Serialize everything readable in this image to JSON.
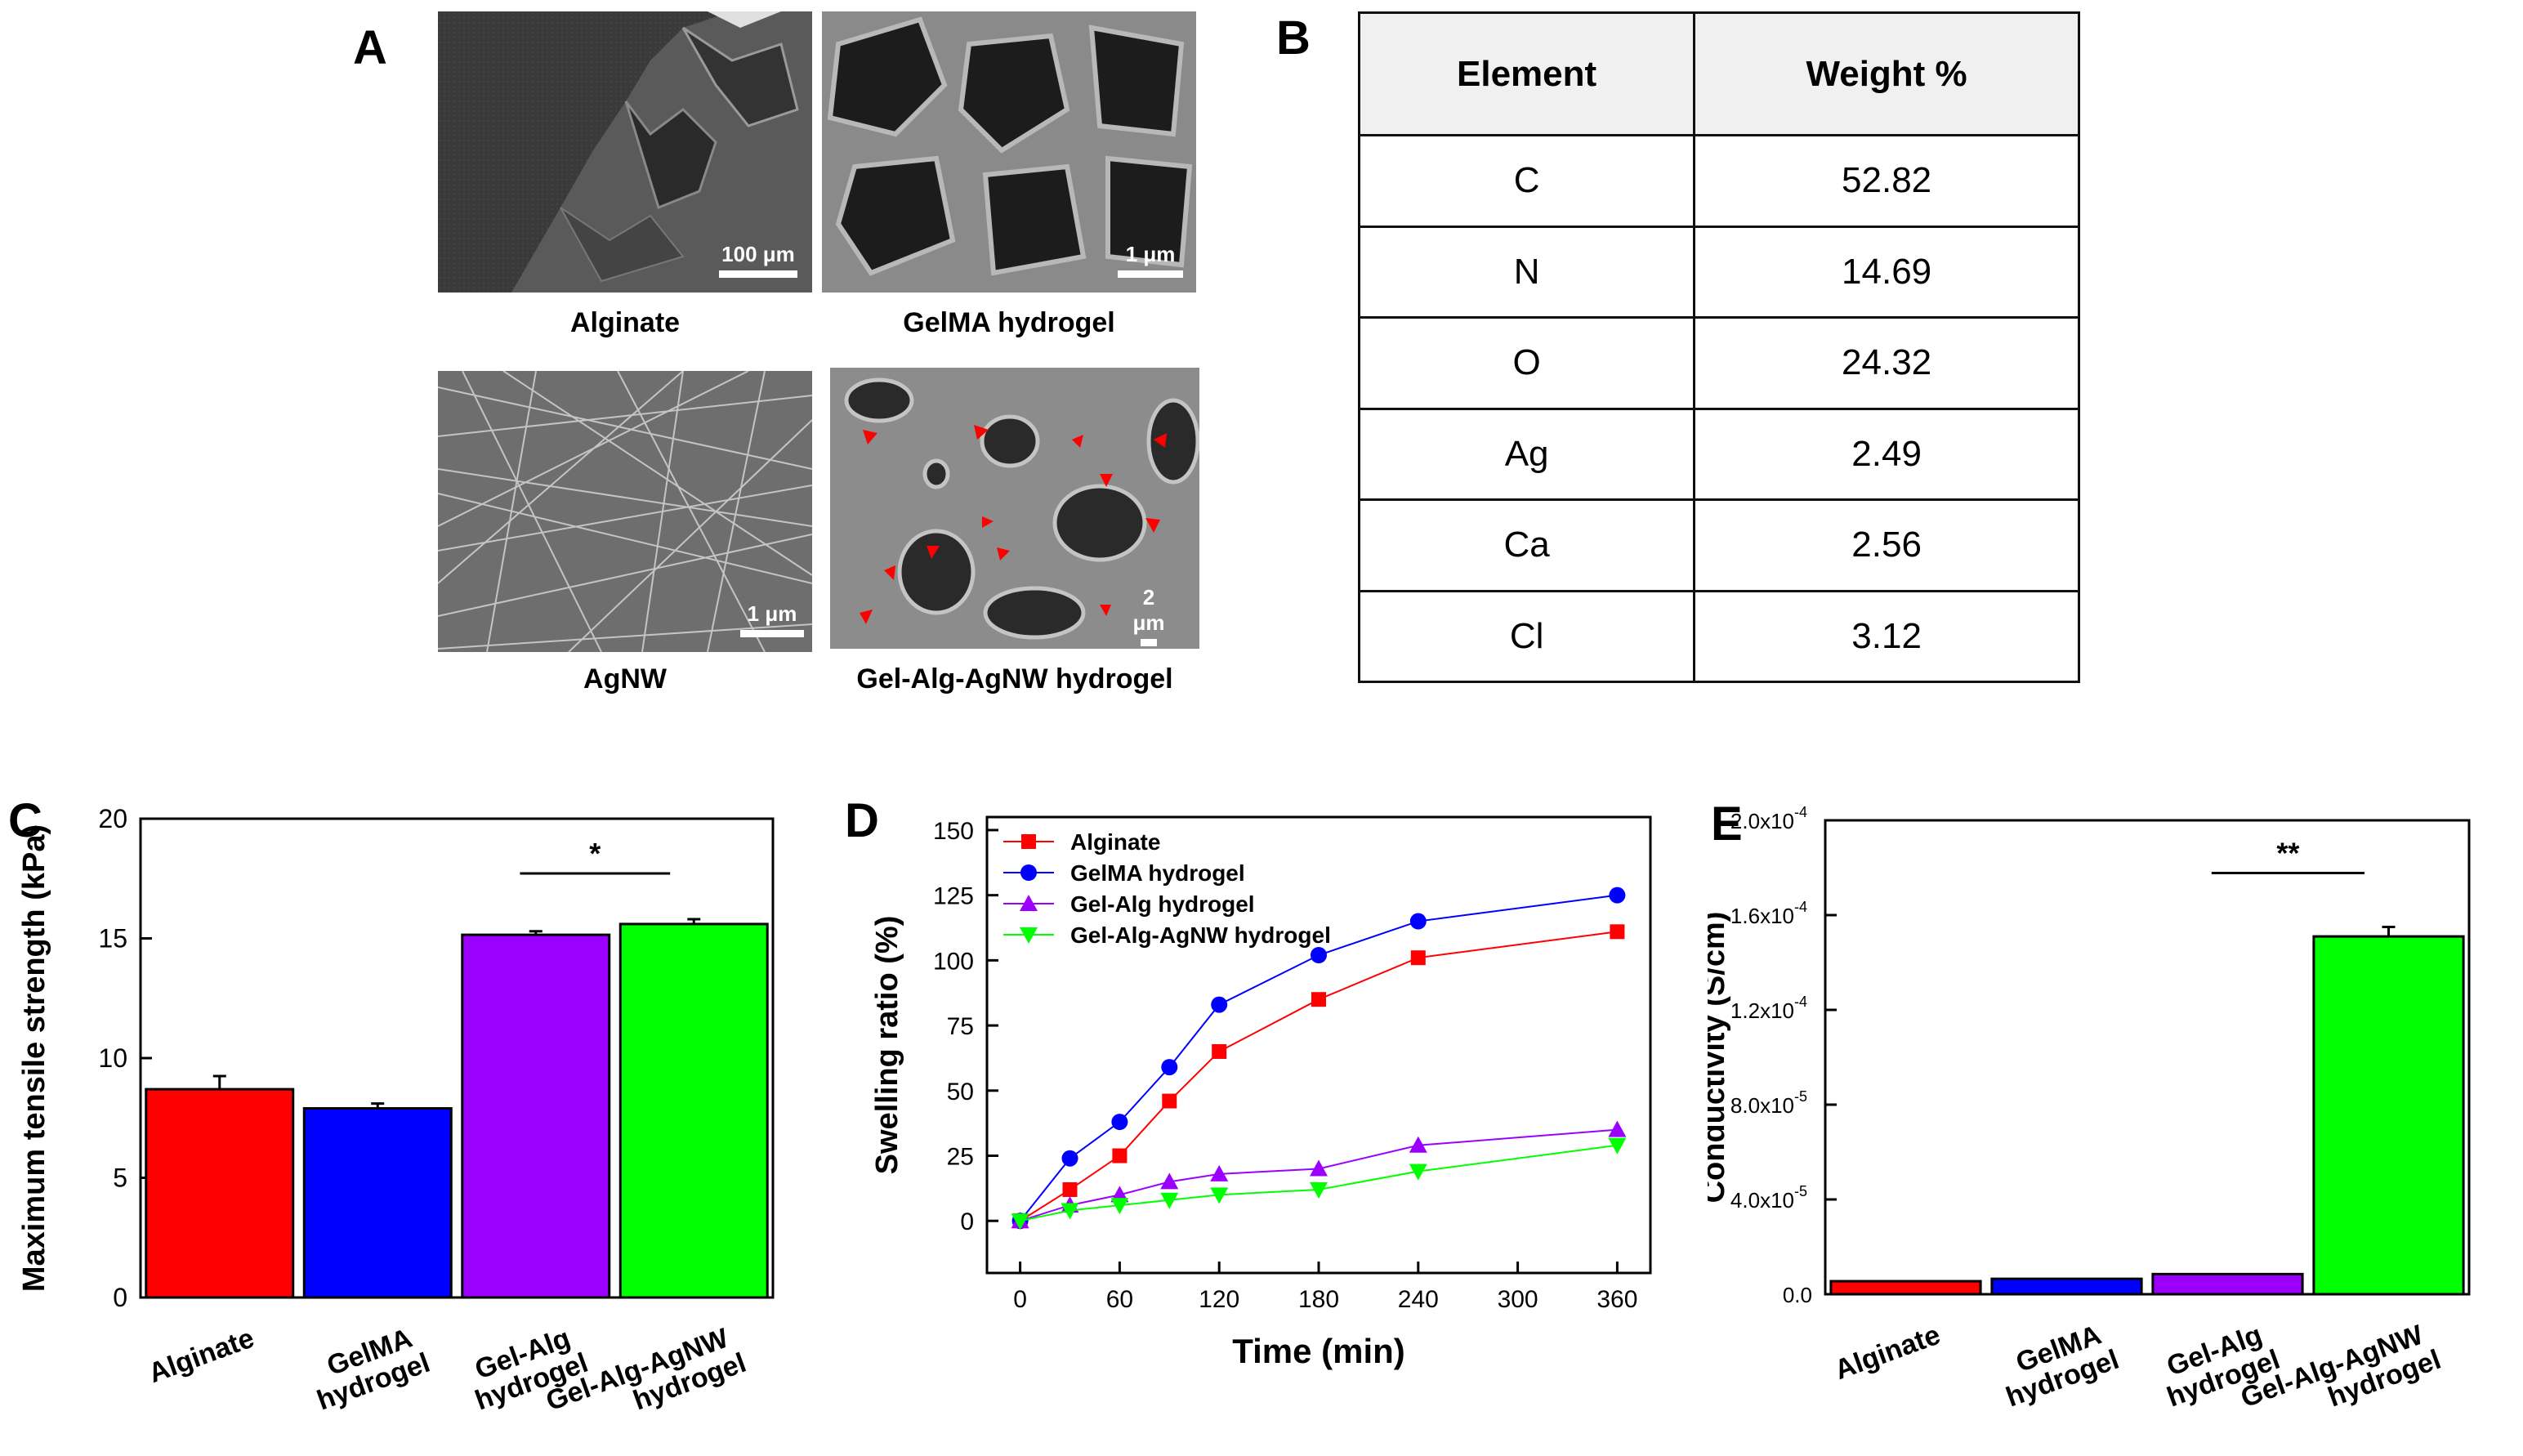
{
  "panels": {
    "A": "A",
    "B": "B",
    "C": "C",
    "D": "D",
    "E": "E"
  },
  "sem_images": [
    {
      "caption": "Alginate",
      "scale": "100 μm"
    },
    {
      "caption": "GelMA hydrogel",
      "scale": "1 μm"
    },
    {
      "caption": "AgNW",
      "scale": "1 μm"
    },
    {
      "caption": "Gel-Alg-AgNW hydrogel",
      "scale": "2 μm"
    }
  ],
  "eds_table": {
    "headers": [
      "Element",
      "Weight %"
    ],
    "rows": [
      [
        "C",
        "52.82"
      ],
      [
        "N",
        "14.69"
      ],
      [
        "O",
        "24.32"
      ],
      [
        "Ag",
        "2.49"
      ],
      [
        "Ca",
        "2.56"
      ],
      [
        "Cl",
        "3.12"
      ]
    ]
  },
  "chart_data": [
    {
      "panel": "C",
      "type": "bar",
      "categories": [
        "Alginate",
        "GelMA hydrogel",
        "Gel-Alg hydrogel",
        "Gel-Alg-AgNW hydrogel"
      ],
      "category_lines": [
        [
          "Alginate"
        ],
        [
          "GelMA",
          "hydrogel"
        ],
        [
          "Gel-Alg",
          "hydrogel"
        ],
        [
          "Gel-Alg-AgNW",
          "hydrogel"
        ]
      ],
      "values": [
        8.7,
        7.9,
        15.15,
        15.6
      ],
      "errors": [
        0.55,
        0.2,
        0.15,
        0.2
      ],
      "colors": [
        "#ff0000",
        "#0000ff",
        "#9b00ff",
        "#00ff00"
      ],
      "ylabel": "Maximum tensile strength (kPa)",
      "ylim": [
        0,
        20
      ],
      "yticks": [
        "0",
        "5",
        "10",
        "15",
        "20"
      ],
      "significance": {
        "label": "*",
        "from": 2,
        "to": 3
      }
    },
    {
      "panel": "D",
      "type": "line",
      "x": [
        0,
        30,
        60,
        90,
        120,
        180,
        240,
        360
      ],
      "xticks": [
        "0",
        "60",
        "120",
        "180",
        "240",
        "300",
        "360"
      ],
      "xlim": [
        -20,
        380
      ],
      "yticks": [
        "0",
        "25",
        "50",
        "75",
        "100",
        "125",
        "150"
      ],
      "ylim": [
        -20,
        155
      ],
      "xlabel": "Time (min)",
      "ylabel": "Swelling ratio (%)",
      "series": [
        {
          "name": "Alginate",
          "color": "#ff0000",
          "marker": "square",
          "values": [
            0,
            12,
            25,
            46,
            65,
            85,
            101,
            111
          ]
        },
        {
          "name": "GelMA hydrogel",
          "color": "#0000ff",
          "marker": "circle",
          "values": [
            0,
            24,
            38,
            59,
            83,
            102,
            115,
            125
          ]
        },
        {
          "name": "Gel-Alg hydrogel",
          "color": "#9b00ff",
          "marker": "triangle-up",
          "values": [
            0,
            6,
            10,
            15,
            18,
            20,
            29,
            35
          ]
        },
        {
          "name": "Gel-Alg-AgNW hydrogel",
          "color": "#00ff00",
          "marker": "triangle-down",
          "values": [
            0,
            4,
            6,
            8,
            10,
            12,
            19,
            29
          ]
        }
      ]
    },
    {
      "panel": "E",
      "type": "bar",
      "categories": [
        "Alginate",
        "GelMA hydrogel",
        "Gel-Alg hydrogel",
        "Gel-Alg-AgNW hydrogel"
      ],
      "category_lines": [
        [
          "Alginate"
        ],
        [
          "GelMA",
          "hydrogel"
        ],
        [
          "Gel-Alg",
          "hydrogel"
        ],
        [
          "Gel-Alg-AgNW",
          "hydrogel"
        ]
      ],
      "values": [
        5.5e-06,
        6.5e-06,
        8.5e-06,
        0.000151
      ],
      "errors": [
        0.0,
        0.0,
        0.0,
        4e-06
      ],
      "colors": [
        "#ff0000",
        "#0000ff",
        "#9b00ff",
        "#00ff00"
      ],
      "ylabel": "Conductivity (S/cm)",
      "ylim": [
        0,
        0.0002
      ],
      "yticks": [
        {
          "mant": "0.0",
          "exp": ""
        },
        {
          "mant": "4.0x10",
          "exp": "-5"
        },
        {
          "mant": "8.0x10",
          "exp": "-5"
        },
        {
          "mant": "1.2x10",
          "exp": "-4"
        },
        {
          "mant": "1.6x10",
          "exp": "-4"
        },
        {
          "mant": "2.0x10",
          "exp": "-4"
        }
      ],
      "significance": {
        "label": "**",
        "from": 2,
        "to": 3
      }
    }
  ]
}
